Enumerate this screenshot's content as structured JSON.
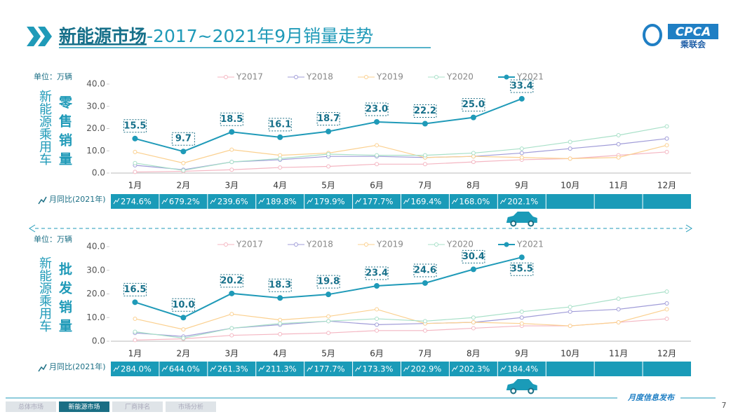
{
  "header": {
    "title_main": "新能源市场",
    "title_rest": "-2017~2021年9月销量走势",
    "logo_en": "CPCA",
    "logo_cn": "乘联会"
  },
  "chart_data": [
    {
      "type": "line",
      "unit": "单位：万辆",
      "side_label": "新能源乘用车",
      "side_title": "零售销量",
      "categories": [
        "1月",
        "2月",
        "3月",
        "4月",
        "5月",
        "6月",
        "7月",
        "8月",
        "9月",
        "10月",
        "11月",
        "12月"
      ],
      "ylim": [
        0,
        40
      ],
      "yticks": [
        {
          "value": 0,
          "label": "0.0"
        },
        {
          "value": 10,
          "label": "10.0"
        },
        {
          "value": 20,
          "label": "20.0"
        },
        {
          "value": 30,
          "label": "30.0"
        },
        {
          "value": 40,
          "label": "40.0"
        }
      ],
      "series": [
        {
          "name": "Y2017",
          "color": "#f4b6c2",
          "values": [
            0.5,
            0.8,
            1.5,
            2.5,
            3.0,
            4.0,
            4.0,
            5.0,
            6.0,
            6.5,
            8.0,
            9.5
          ]
        },
        {
          "name": "Y2018",
          "color": "#a09cd8",
          "values": [
            3.5,
            1.5,
            5.0,
            6.0,
            7.5,
            7.5,
            7.0,
            7.5,
            9.0,
            11.0,
            13.0,
            15.5
          ]
        },
        {
          "name": "Y2019",
          "color": "#fbd08f",
          "values": [
            9.5,
            4.5,
            10.5,
            8.0,
            9.0,
            12.5,
            7.0,
            7.5,
            7.0,
            6.5,
            7.0,
            12.5
          ]
        },
        {
          "name": "Y2020",
          "color": "#a8e0c8",
          "values": [
            4.5,
            1.2,
            5.0,
            6.5,
            8.5,
            8.0,
            8.0,
            9.0,
            11.0,
            14.0,
            17.0,
            21.0
          ]
        },
        {
          "name": "Y2021",
          "color": "#1f9ab8",
          "values": [
            15.5,
            9.7,
            18.5,
            16.1,
            18.7,
            23.0,
            22.2,
            25.0,
            33.4,
            null,
            null,
            null
          ],
          "value_labels": [
            "15.5",
            "9.7",
            "18.5",
            "16.1",
            "18.7",
            "23.0",
            "22.2",
            "25.0",
            "33.4",
            null,
            null,
            null
          ]
        }
      ],
      "yoy": {
        "label": "月同比(2021年)",
        "values": [
          "274.6%",
          "679.2%",
          "239.6%",
          "189.8%",
          "179.9%",
          "177.7%",
          "169.4%",
          "168.0%",
          "202.1%"
        ]
      }
    },
    {
      "type": "line",
      "unit": "单位：万辆",
      "side_label": "新能源乘用车",
      "side_title": "批发销量",
      "categories": [
        "1月",
        "2月",
        "3月",
        "4月",
        "5月",
        "6月",
        "7月",
        "8月",
        "9月",
        "10月",
        "11月",
        "12月"
      ],
      "ylim": [
        0,
        40
      ],
      "yticks": [
        {
          "value": 0,
          "label": "0.0"
        },
        {
          "value": 10,
          "label": "10.0"
        },
        {
          "value": 20,
          "label": "20.0"
        },
        {
          "value": 30,
          "label": "30.0"
        },
        {
          "value": 40,
          "label": "40.0"
        }
      ],
      "series": [
        {
          "name": "Y2017",
          "color": "#f4b6c2",
          "values": [
            0.5,
            1.0,
            2.5,
            3.0,
            3.5,
            4.5,
            4.5,
            5.5,
            6.5,
            6.5,
            8.0,
            9.5
          ]
        },
        {
          "name": "Y2018",
          "color": "#a09cd8",
          "values": [
            3.5,
            2.0,
            5.5,
            7.0,
            8.5,
            7.0,
            7.5,
            8.0,
            10.0,
            12.5,
            13.5,
            16.0
          ]
        },
        {
          "name": "Y2019",
          "color": "#fbd08f",
          "values": [
            9.5,
            5.0,
            11.5,
            9.0,
            10.5,
            13.5,
            7.5,
            8.0,
            7.5,
            6.5,
            8.0,
            13.5
          ]
        },
        {
          "name": "Y2020",
          "color": "#a8e0c8",
          "values": [
            4.0,
            1.3,
            5.5,
            7.5,
            8.5,
            9.5,
            8.5,
            10.0,
            12.5,
            14.5,
            18.0,
            21.0
          ]
        },
        {
          "name": "Y2021",
          "color": "#1f9ab8",
          "values": [
            16.5,
            10.0,
            20.2,
            18.3,
            19.8,
            23.4,
            24.6,
            30.4,
            35.5,
            null,
            null,
            null
          ],
          "value_labels": [
            "16.5",
            "10.0",
            "20.2",
            "18.3",
            "19.8",
            "23.4",
            "24.6",
            "30.4",
            "35.5",
            null,
            null,
            null
          ]
        }
      ],
      "yoy": {
        "label": "月同比(2021年)",
        "values": [
          "284.0%",
          "644.0%",
          "261.3%",
          "211.3%",
          "177.7%",
          "173.3%",
          "202.9%",
          "202.3%",
          "184.4%"
        ]
      }
    }
  ],
  "footer": {
    "tabs": [
      "总体市场",
      "新能源市场",
      "厂商排名",
      "市场分析"
    ],
    "release": "月度信息发布",
    "page": "7"
  }
}
